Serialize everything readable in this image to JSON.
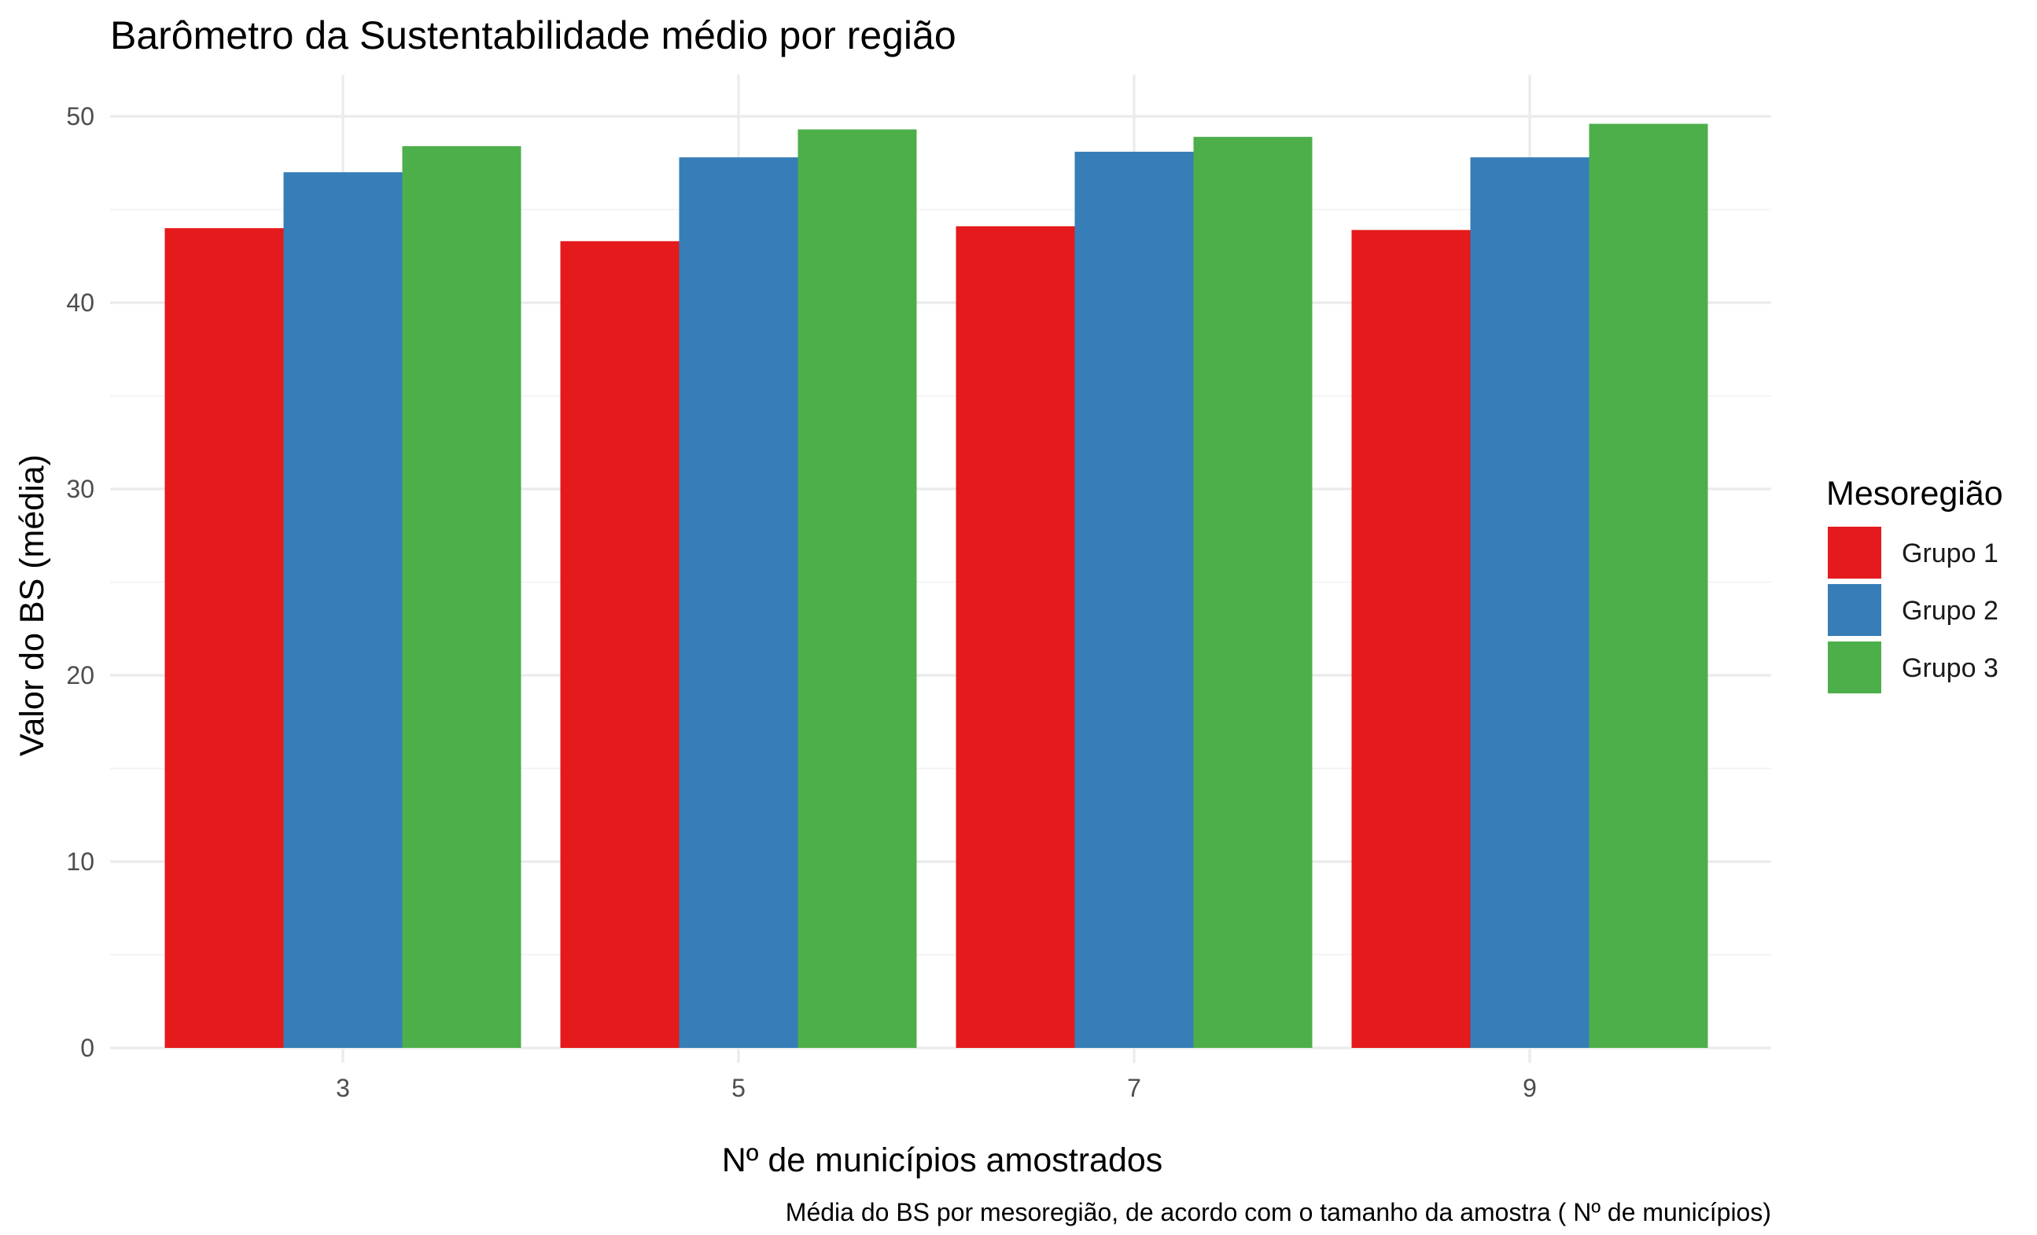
{
  "chart_data": {
    "type": "bar",
    "title": "Barômetro da Sustentabilidade médio por região",
    "xlabel": "Nº de municípios amostrados",
    "ylabel": "Valor do BS (média)",
    "caption": "Média do BS por mesoregião, de acordo com o tamanho da amostra ( Nº de municípios)",
    "categories": [
      "3",
      "5",
      "7",
      "9"
    ],
    "ylim": [
      0,
      50
    ],
    "yticks": [
      0,
      10,
      20,
      30,
      40,
      50
    ],
    "ytick_labels": [
      "0",
      "10",
      "20",
      "30",
      "40",
      "50"
    ],
    "grid": true,
    "legend": {
      "title": "Mesoregião",
      "position": "right"
    },
    "series": [
      {
        "name": "Grupo 1",
        "color": "#E41A1C",
        "values": [
          44.0,
          43.3,
          44.1,
          43.9
        ]
      },
      {
        "name": "Grupo 2",
        "color": "#377EB8",
        "values": [
          47.0,
          47.8,
          48.1,
          47.8
        ]
      },
      {
        "name": "Grupo 3",
        "color": "#4DAF4A",
        "values": [
          48.4,
          49.3,
          48.9,
          49.6
        ]
      }
    ]
  }
}
